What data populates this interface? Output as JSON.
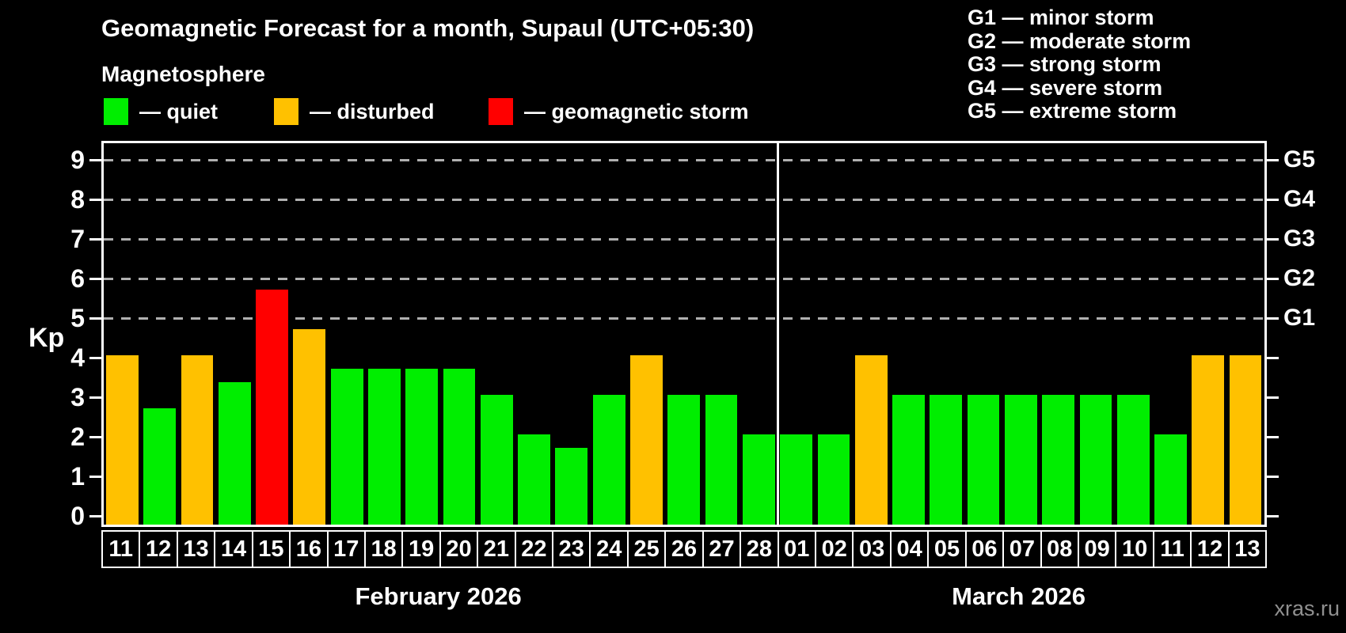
{
  "title": "Geomagnetic Forecast for a month, Supaul (UTC+05:30)",
  "subtitle": "Magnetosphere",
  "legend": {
    "items": [
      {
        "label": "— quiet",
        "status": "quiet"
      },
      {
        "label": "— disturbed",
        "status": "disturbed"
      },
      {
        "label": "— geomagnetic storm",
        "status": "storm"
      }
    ],
    "positions": [
      131,
      346,
      617
    ]
  },
  "storm_scale": [
    "G1 — minor storm",
    "G2 — moderate storm",
    "G3 — strong storm",
    "G4 — severe storm",
    "G5 — extreme storm"
  ],
  "colors": {
    "quiet": "#00ee00",
    "disturbed": "#ffc100",
    "storm": "#ff0000",
    "background": "#000000",
    "axis": "#ffffff",
    "grid": "#b0b0b0",
    "watermark": "#909090"
  },
  "watermark": "xras.ru",
  "chart_data": {
    "type": "bar",
    "title": "Geomagnetic Forecast for a month, Supaul (UTC+05:30)",
    "xlabel": "",
    "ylabel": "Kp",
    "ylim": [
      0,
      9.4
    ],
    "yticks": [
      0,
      1,
      2,
      3,
      4,
      5,
      6,
      7,
      8,
      9
    ],
    "grid_on": true,
    "grid_levels": [
      {
        "kp": 5,
        "label": "G1"
      },
      {
        "kp": 6,
        "label": "G2"
      },
      {
        "kp": 7,
        "label": "G3"
      },
      {
        "kp": 8,
        "label": "G4"
      },
      {
        "kp": 9,
        "label": "G5"
      }
    ],
    "months": [
      {
        "label": "February 2026",
        "days": 18
      },
      {
        "label": "March 2026",
        "days": 13
      }
    ],
    "bars": [
      {
        "date": "11",
        "month": "February 2026",
        "kp": 4.0,
        "status": "disturbed"
      },
      {
        "date": "12",
        "month": "February 2026",
        "kp": 2.67,
        "status": "quiet"
      },
      {
        "date": "13",
        "month": "February 2026",
        "kp": 4.0,
        "status": "disturbed"
      },
      {
        "date": "14",
        "month": "February 2026",
        "kp": 3.33,
        "status": "quiet"
      },
      {
        "date": "15",
        "month": "February 2026",
        "kp": 5.67,
        "status": "storm"
      },
      {
        "date": "16",
        "month": "February 2026",
        "kp": 4.67,
        "status": "disturbed"
      },
      {
        "date": "17",
        "month": "February 2026",
        "kp": 3.67,
        "status": "quiet"
      },
      {
        "date": "18",
        "month": "February 2026",
        "kp": 3.67,
        "status": "quiet"
      },
      {
        "date": "19",
        "month": "February 2026",
        "kp": 3.67,
        "status": "quiet"
      },
      {
        "date": "20",
        "month": "February 2026",
        "kp": 3.67,
        "status": "quiet"
      },
      {
        "date": "21",
        "month": "February 2026",
        "kp": 3.0,
        "status": "quiet"
      },
      {
        "date": "22",
        "month": "February 2026",
        "kp": 2.0,
        "status": "quiet"
      },
      {
        "date": "23",
        "month": "February 2026",
        "kp": 1.67,
        "status": "quiet"
      },
      {
        "date": "24",
        "month": "February 2026",
        "kp": 3.0,
        "status": "quiet"
      },
      {
        "date": "25",
        "month": "February 2026",
        "kp": 4.0,
        "status": "disturbed"
      },
      {
        "date": "26",
        "month": "February 2026",
        "kp": 3.0,
        "status": "quiet"
      },
      {
        "date": "27",
        "month": "February 2026",
        "kp": 3.0,
        "status": "quiet"
      },
      {
        "date": "28",
        "month": "February 2026",
        "kp": 2.0,
        "status": "quiet"
      },
      {
        "date": "01",
        "month": "March 2026",
        "kp": 2.0,
        "status": "quiet"
      },
      {
        "date": "02",
        "month": "March 2026",
        "kp": 2.0,
        "status": "quiet"
      },
      {
        "date": "03",
        "month": "March 2026",
        "kp": 4.0,
        "status": "disturbed"
      },
      {
        "date": "04",
        "month": "March 2026",
        "kp": 3.0,
        "status": "quiet"
      },
      {
        "date": "05",
        "month": "March 2026",
        "kp": 3.0,
        "status": "quiet"
      },
      {
        "date": "06",
        "month": "March 2026",
        "kp": 3.0,
        "status": "quiet"
      },
      {
        "date": "07",
        "month": "March 2026",
        "kp": 3.0,
        "status": "quiet"
      },
      {
        "date": "08",
        "month": "March 2026",
        "kp": 3.0,
        "status": "quiet"
      },
      {
        "date": "09",
        "month": "March 2026",
        "kp": 3.0,
        "status": "quiet"
      },
      {
        "date": "10",
        "month": "March 2026",
        "kp": 3.0,
        "status": "quiet"
      },
      {
        "date": "11",
        "month": "March 2026",
        "kp": 2.0,
        "status": "quiet"
      },
      {
        "date": "12",
        "month": "March 2026",
        "kp": 4.0,
        "status": "disturbed"
      },
      {
        "date": "13",
        "month": "March 2026",
        "kp": 4.0,
        "status": "disturbed"
      }
    ]
  }
}
